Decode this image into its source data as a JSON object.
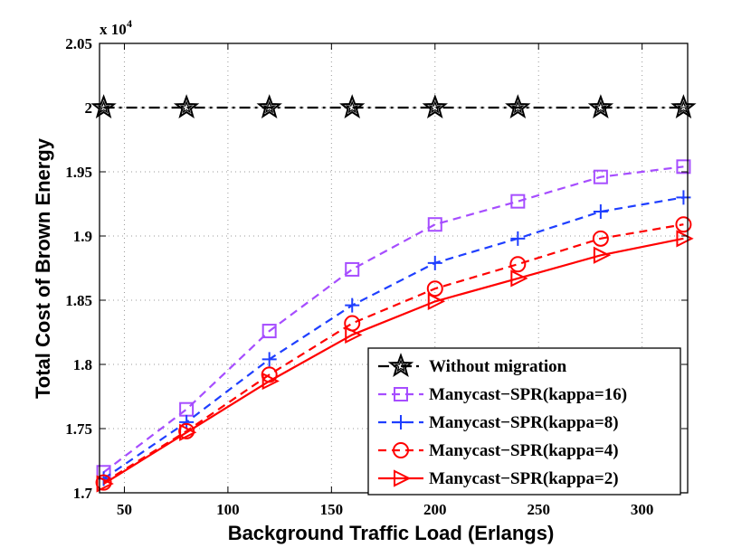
{
  "chart_data": {
    "type": "line",
    "xlabel": "Background Traffic Load (Erlangs)",
    "ylabel": "Total Cost of Brown Energy",
    "multiplier": "x 10",
    "multiplier_exp": "4",
    "xlim": [
      38,
      322
    ],
    "ylim": [
      1.7,
      2.05
    ],
    "xticks": [
      50,
      100,
      150,
      200,
      250,
      300
    ],
    "yticks": [
      1.7,
      1.75,
      1.8,
      1.85,
      1.9,
      1.95,
      2,
      2.05
    ],
    "ytick_labels": [
      "1.7",
      "1.75",
      "1.8",
      "1.85",
      "1.9",
      "1.95",
      "2",
      "2.05"
    ],
    "grid": true,
    "legend_position": "bottom-right",
    "x": [
      40,
      80,
      120,
      160,
      200,
      240,
      280,
      320
    ],
    "series": [
      {
        "name": "Without migration",
        "color": "#000000",
        "marker": "star",
        "dash": "dashdot",
        "values": [
          2.0,
          2.0,
          2.0,
          2.0,
          2.0,
          2.0,
          2.0,
          2.0
        ]
      },
      {
        "name": "Manycast−SPR(kappa=16)",
        "color": "#a64dff",
        "marker": "square",
        "dash": "dashed",
        "values": [
          1.716,
          1.765,
          1.826,
          1.874,
          1.909,
          1.927,
          1.946,
          1.954
        ]
      },
      {
        "name": "Manycast−SPR(kappa=8)",
        "color": "#1f3fff",
        "marker": "plus",
        "dash": "dashed",
        "values": [
          1.711,
          1.755,
          1.804,
          1.846,
          1.879,
          1.898,
          1.919,
          1.93
        ]
      },
      {
        "name": "Manycast−SPR(kappa=4)",
        "color": "#ff0000",
        "marker": "circle",
        "dash": "dashed",
        "values": [
          1.708,
          1.748,
          1.792,
          1.832,
          1.859,
          1.878,
          1.898,
          1.909
        ]
      },
      {
        "name": "Manycast−SPR(kappa=2)",
        "color": "#ff0000",
        "marker": "triangle-right",
        "dash": "solid",
        "values": [
          1.707,
          1.747,
          1.787,
          1.823,
          1.849,
          1.867,
          1.885,
          1.898
        ]
      }
    ]
  }
}
